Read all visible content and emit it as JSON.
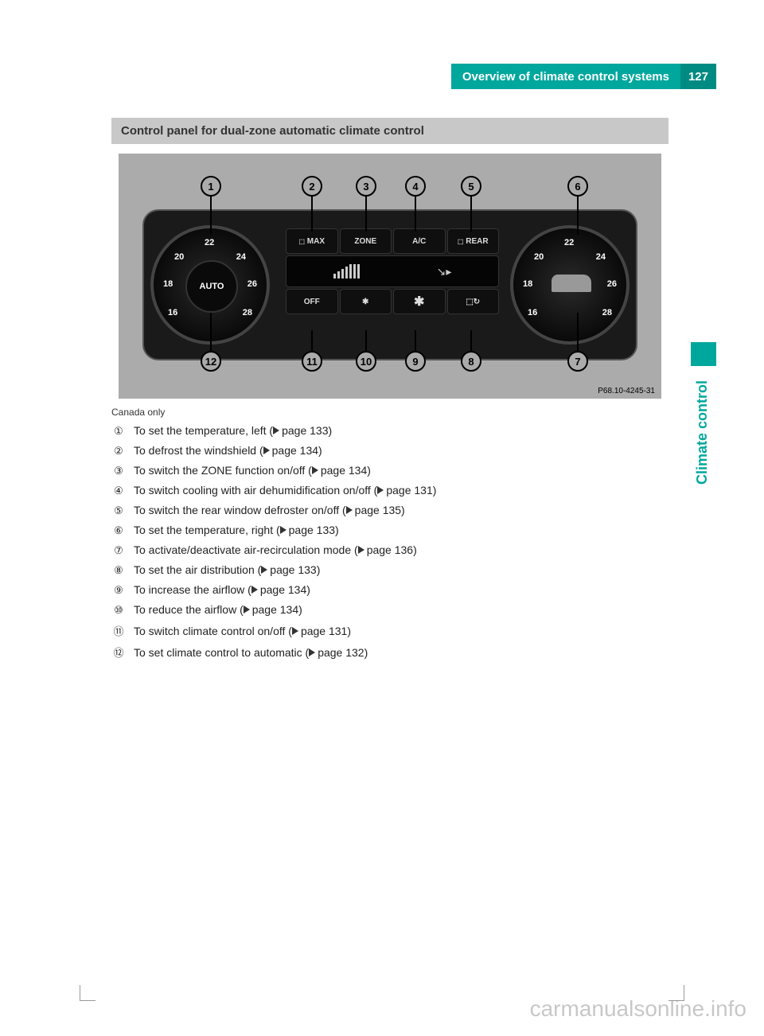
{
  "header": {
    "title": "Overview of climate control systems",
    "page_number": "127"
  },
  "side_tab": {
    "label": "Climate control"
  },
  "section": {
    "title": "Control panel for dual-zone automatic climate control"
  },
  "diagram": {
    "code": "P68.10-4245-31",
    "caption": "Canada only",
    "dial_left_center": "AUTO",
    "scale": [
      "16",
      "18",
      "20",
      "22",
      "24",
      "26",
      "28"
    ],
    "buttons_top": [
      "MAX",
      "ZONE",
      "A/C",
      "REAR"
    ],
    "buttons_bottom": [
      "OFF",
      "",
      "",
      ""
    ],
    "callouts_top": [
      "1",
      "2",
      "3",
      "4",
      "5",
      "6"
    ],
    "callouts_bottom": [
      "12",
      "11",
      "10",
      "9",
      "8",
      "7"
    ]
  },
  "legend": [
    {
      "marker": "①",
      "text": "To set the temperature, left (",
      "page": "page 133)"
    },
    {
      "marker": "②",
      "text": "To defrost the windshield (",
      "page": "page 134)"
    },
    {
      "marker": "③",
      "text": "To switch the ZONE function on/off (",
      "page": "page 134)"
    },
    {
      "marker": "④",
      "text": "To switch cooling with air dehumidification on/off (",
      "page": "page 131)"
    },
    {
      "marker": "⑤",
      "text": "To switch the rear window defroster on/off (",
      "page": "page 135)"
    },
    {
      "marker": "⑥",
      "text": "To set the temperature, right (",
      "page": "page 133)"
    },
    {
      "marker": "⑦",
      "text": "To activate/deactivate air-recirculation mode (",
      "page": "page 136)"
    },
    {
      "marker": "⑧",
      "text": "To set the air distribution (",
      "page": "page 133)"
    },
    {
      "marker": "⑨",
      "text": "To increase the airflow (",
      "page": "page 134)"
    },
    {
      "marker": "⑩",
      "text": "To reduce the airflow (",
      "page": "page 134)"
    },
    {
      "marker": "⑪",
      "text": "To switch climate control on/off (",
      "page": "page 131)"
    },
    {
      "marker": "⑫",
      "text": "To set climate control to automatic (",
      "page": "page 132)"
    }
  ],
  "watermark": "carmanualsonline.info",
  "colors": {
    "teal": "#00a79d",
    "teal_dark": "#008b82",
    "section_bg": "#c8c8c8",
    "diagram_bg": "#ababab"
  }
}
